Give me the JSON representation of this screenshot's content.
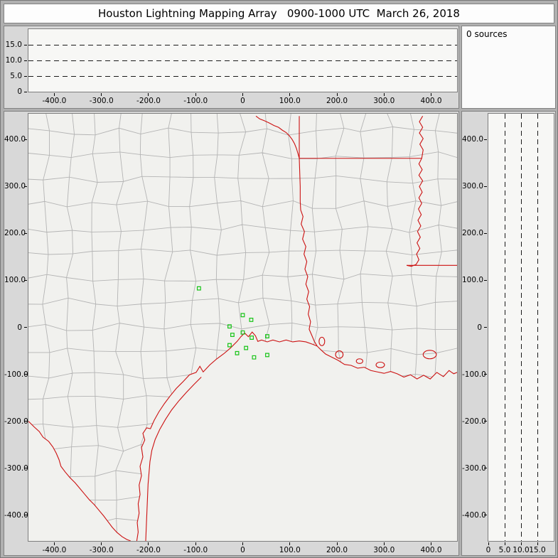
{
  "title": "Houston Lightning Mapping Array   0900-1000 UTC  March 26, 2018",
  "sources_label": "0 sources",
  "colors": {
    "county_line": "#b4b4b4",
    "state_border": "#cc1111",
    "station": "#18c418",
    "dash_line": "#1a1a1a"
  },
  "chart_data": {
    "sources_count": 0,
    "panels": [
      {
        "id": "altitude-vs-eastwest",
        "type": "scatter",
        "xlim": [
          -455,
          455
        ],
        "ylim": [
          0,
          20
        ],
        "x_ticks": {
          "values": [
            -400,
            -300,
            -200,
            -100,
            0,
            100,
            200,
            300,
            400
          ],
          "labels": [
            "-400.0",
            "-300.0",
            "-200.0",
            "-100.0",
            "0",
            "100.0",
            "200.0",
            "300.0",
            "400.0"
          ]
        },
        "y_ticks": {
          "values": [
            0,
            5,
            10,
            15
          ],
          "labels": [
            "0",
            "5.0",
            "10.0",
            "15.0"
          ]
        },
        "dashed_y": [
          5,
          10,
          15
        ],
        "series": []
      },
      {
        "id": "plan-view-map",
        "type": "scatter",
        "xlim": [
          -455,
          455
        ],
        "ylim": [
          -455,
          455
        ],
        "x_ticks": {
          "values": [
            -400,
            -300,
            -200,
            -100,
            0,
            100,
            200,
            300,
            400
          ],
          "labels": [
            "-400.0",
            "-300.0",
            "-200.0",
            "-100.0",
            "0",
            "100.0",
            "200.0",
            "300.0",
            "400.0"
          ]
        },
        "y_ticks": {
          "values": [
            400,
            300,
            200,
            100,
            0,
            -100,
            -200,
            -300,
            -400
          ],
          "labels": [
            "400.0",
            "300.0",
            "200.0",
            "100.0",
            "0",
            "-100.0",
            "-200.0",
            "-300.0",
            "-400.0"
          ]
        },
        "stations_xy": [
          [
            -93,
            83
          ],
          [
            0,
            26
          ],
          [
            18,
            16
          ],
          [
            -28,
            2
          ],
          [
            -22,
            -16
          ],
          [
            0,
            -11
          ],
          [
            19,
            -22
          ],
          [
            -28,
            -38
          ],
          [
            7,
            -44
          ],
          [
            -12,
            -55
          ],
          [
            24,
            -64
          ],
          [
            52,
            -19
          ],
          [
            52,
            -59
          ]
        ],
        "series": []
      },
      {
        "id": "altitude-vs-northsouth",
        "type": "scatter",
        "xlim": [
          0,
          20
        ],
        "ylim": [
          -455,
          455
        ],
        "x_ticks": {
          "values": [
            0,
            5,
            10,
            15
          ],
          "labels": [
            "0",
            "5.0",
            "10.0",
            "15.0"
          ]
        },
        "y_ticks": {
          "values": [
            400,
            300,
            200,
            100,
            0,
            -100,
            -200,
            -300,
            -400
          ],
          "labels": [
            "400.0",
            "300.0",
            "200.0",
            "100.0",
            "0",
            "-100.0",
            "-200.0",
            "-300.0",
            "-400.0"
          ]
        },
        "dashed_x": [
          5,
          10,
          15
        ],
        "series": []
      }
    ]
  },
  "map_overlay": {
    "county_grid": {
      "cell": 52,
      "jitter": 9,
      "seed": 20180326
    },
    "red_paths": {
      "red_river": [
        [
          28,
          450
        ],
        [
          36,
          444
        ],
        [
          46,
          440
        ],
        [
          57,
          435
        ],
        [
          66,
          430
        ],
        [
          76,
          426
        ],
        [
          84,
          420
        ],
        [
          92,
          415
        ],
        [
          99,
          408
        ],
        [
          105,
          400
        ],
        [
          110,
          391
        ],
        [
          114,
          381
        ],
        [
          117,
          371
        ],
        [
          120,
          360
        ]
      ],
      "ok_ar_border": [
        [
          120,
          450
        ],
        [
          120,
          360
        ]
      ],
      "ar_la_border": [
        [
          120,
          360
        ],
        [
          380,
          360
        ]
      ],
      "tx_la_border": [
        [
          120,
          360
        ],
        [
          121,
          330
        ],
        [
          122,
          300
        ],
        [
          122,
          268
        ],
        [
          123,
          250
        ],
        [
          128,
          236
        ],
        [
          124,
          220
        ],
        [
          131,
          204
        ],
        [
          127,
          188
        ],
        [
          134,
          172
        ],
        [
          130,
          156
        ],
        [
          136,
          140
        ],
        [
          132,
          124
        ],
        [
          138,
          108
        ],
        [
          134,
          92
        ],
        [
          140,
          76
        ],
        [
          136,
          60
        ],
        [
          142,
          44
        ],
        [
          139,
          28
        ],
        [
          144,
          12
        ],
        [
          141,
          -4
        ],
        [
          147,
          -18
        ],
        [
          152,
          -30
        ],
        [
          158,
          -40
        ]
      ],
      "mississippi_river": [
        [
          382,
          450
        ],
        [
          375,
          438
        ],
        [
          382,
          426
        ],
        [
          375,
          414
        ],
        [
          383,
          402
        ],
        [
          376,
          390
        ],
        [
          383,
          378
        ],
        [
          380,
          360
        ],
        [
          374,
          348
        ],
        [
          381,
          336
        ],
        [
          374,
          324
        ],
        [
          382,
          312
        ],
        [
          375,
          300
        ],
        [
          381,
          288
        ],
        [
          374,
          276
        ],
        [
          380,
          264
        ],
        [
          373,
          252
        ],
        [
          379,
          240
        ],
        [
          372,
          228
        ],
        [
          378,
          216
        ],
        [
          371,
          204
        ],
        [
          377,
          192
        ],
        [
          370,
          180
        ],
        [
          376,
          168
        ],
        [
          369,
          156
        ],
        [
          374,
          144
        ],
        [
          368,
          134
        ],
        [
          358,
          130
        ],
        [
          348,
          132
        ]
      ],
      "la_ms_border": [
        [
          348,
          132
        ],
        [
          455,
          132
        ]
      ],
      "coastline": [
        [
          -225,
          -455
        ],
        [
          -222,
          -436
        ],
        [
          -224,
          -416
        ],
        [
          -220,
          -396
        ],
        [
          -222,
          -376
        ],
        [
          -218,
          -356
        ],
        [
          -220,
          -336
        ],
        [
          -215,
          -316
        ],
        [
          -218,
          -296
        ],
        [
          -212,
          -276
        ],
        [
          -215,
          -256
        ],
        [
          -208,
          -240
        ],
        [
          -212,
          -226
        ],
        [
          -204,
          -214
        ],
        [
          -196,
          -216
        ],
        [
          -188,
          -198
        ],
        [
          -178,
          -180
        ],
        [
          -166,
          -162
        ],
        [
          -154,
          -146
        ],
        [
          -141,
          -130
        ],
        [
          -127,
          -116
        ],
        [
          -113,
          -101
        ],
        [
          -99,
          -96
        ],
        [
          -91,
          -83
        ],
        [
          -84,
          -95
        ],
        [
          -70,
          -80
        ],
        [
          -55,
          -67
        ],
        [
          -40,
          -56
        ],
        [
          -26,
          -44
        ],
        [
          -12,
          -30
        ],
        [
          -4,
          -20
        ],
        [
          4,
          -12
        ],
        [
          12,
          -20
        ],
        [
          20,
          -10
        ],
        [
          27,
          -18
        ],
        [
          32,
          -30
        ],
        [
          40,
          -27
        ],
        [
          52,
          -31
        ],
        [
          64,
          -27
        ],
        [
          78,
          -31
        ],
        [
          92,
          -27
        ],
        [
          106,
          -31
        ],
        [
          120,
          -29
        ],
        [
          134,
          -31
        ],
        [
          148,
          -36
        ],
        [
          158,
          -40
        ],
        [
          166,
          -48
        ],
        [
          176,
          -57
        ],
        [
          188,
          -63
        ],
        [
          202,
          -70
        ],
        [
          216,
          -79
        ],
        [
          230,
          -81
        ],
        [
          244,
          -87
        ],
        [
          258,
          -85
        ],
        [
          272,
          -92
        ],
        [
          286,
          -95
        ],
        [
          300,
          -98
        ],
        [
          314,
          -94
        ],
        [
          328,
          -99
        ],
        [
          342,
          -106
        ],
        [
          356,
          -101
        ],
        [
          370,
          -110
        ],
        [
          384,
          -102
        ],
        [
          398,
          -110
        ],
        [
          412,
          -96
        ],
        [
          426,
          -105
        ],
        [
          438,
          -92
        ],
        [
          448,
          -99
        ],
        [
          455,
          -96
        ]
      ],
      "barrier_island": [
        [
          -88,
          -106
        ],
        [
          -104,
          -122
        ],
        [
          -120,
          -139
        ],
        [
          -136,
          -157
        ],
        [
          -151,
          -176
        ],
        [
          -164,
          -196
        ],
        [
          -176,
          -217
        ],
        [
          -186,
          -239
        ],
        [
          -193,
          -262
        ],
        [
          -197,
          -286
        ],
        [
          -199,
          -310
        ],
        [
          -201,
          -334
        ],
        [
          -202,
          -358
        ],
        [
          -203,
          -382
        ],
        [
          -204,
          -406
        ],
        [
          -205,
          -430
        ],
        [
          -206,
          -455
        ]
      ],
      "rio_grande": [
        [
          -455,
          -200
        ],
        [
          -443,
          -212
        ],
        [
          -432,
          -222
        ],
        [
          -424,
          -234
        ],
        [
          -412,
          -243
        ],
        [
          -403,
          -255
        ],
        [
          -396,
          -268
        ],
        [
          -390,
          -282
        ],
        [
          -386,
          -296
        ],
        [
          -377,
          -308
        ],
        [
          -367,
          -320
        ],
        [
          -356,
          -331
        ],
        [
          -346,
          -343
        ],
        [
          -336,
          -355
        ],
        [
          -326,
          -367
        ],
        [
          -315,
          -378
        ],
        [
          -305,
          -390
        ],
        [
          -295,
          -402
        ],
        [
          -286,
          -414
        ],
        [
          -277,
          -426
        ],
        [
          -267,
          -437
        ],
        [
          -256,
          -446
        ],
        [
          -246,
          -452
        ],
        [
          -238,
          -455
        ]
      ]
    },
    "lakes": [
      [
        168,
        -30,
        6,
        9
      ],
      [
        205,
        -58,
        8,
        8
      ],
      [
        248,
        -72,
        7,
        5
      ],
      [
        292,
        -80,
        9,
        6
      ],
      [
        397,
        -58,
        14,
        9
      ]
    ]
  }
}
